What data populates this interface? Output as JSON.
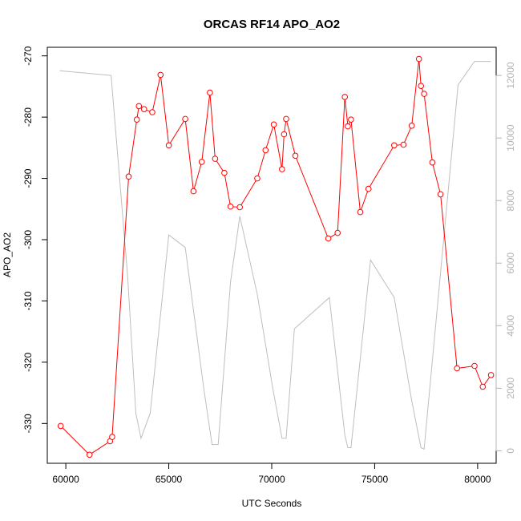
{
  "chart_data": {
    "type": "line",
    "title": "ORCAS RF14 APO_AO2",
    "xlabel": "UTC Seconds",
    "ylabel": "APO_AO2",
    "xlim": [
      59100,
      80900
    ],
    "ylim": [
      -336.5,
      -268.6
    ],
    "x_ticks": [
      60000,
      65000,
      70000,
      75000,
      80000
    ],
    "y_ticks": [
      -330,
      -320,
      -310,
      -300,
      -290,
      -280,
      -270
    ],
    "grid": false,
    "legend": "none",
    "series": [
      {
        "color": "#ff0000",
        "marker": "open-circle",
        "axis": "left",
        "x": [
          59750,
          61150,
          62150,
          62250,
          63050,
          63450,
          63550,
          63800,
          64200,
          64600,
          65000,
          65800,
          66200,
          66600,
          67000,
          67250,
          67700,
          68000,
          68450,
          69300,
          69700,
          70100,
          70500,
          70600,
          70700,
          71150,
          72750,
          73200,
          73550,
          73700,
          73850,
          74300,
          74700,
          75950,
          76400,
          76800,
          77150,
          77250,
          77400,
          77800,
          78200,
          79000,
          79850,
          80250,
          80650
        ],
        "y": [
          -330.4,
          -335.1,
          -332.9,
          -332.2,
          -289.7,
          -280.4,
          -278.2,
          -278.7,
          -279.2,
          -273.1,
          -284.6,
          -280.3,
          -292.1,
          -287.3,
          -276.0,
          -286.8,
          -289.1,
          -294.6,
          -294.7,
          -290.0,
          -285.4,
          -281.2,
          -288.5,
          -282.8,
          -280.3,
          -286.3,
          -299.8,
          -298.9,
          -276.7,
          -281.5,
          -280.4,
          -295.5,
          -291.7,
          -284.6,
          -284.5,
          -281.4,
          -270.5,
          -274.9,
          -276.2,
          -287.4,
          -292.6,
          -321.0,
          -320.6,
          -324.0,
          -322.1
        ]
      },
      {
        "color": "#bebebe",
        "marker": "none",
        "axis": "right",
        "x": [
          59700,
          62200,
          63000,
          63400,
          63650,
          64100,
          65000,
          65800,
          66700,
          67100,
          67400,
          68000,
          68450,
          69300,
          70050,
          70500,
          70700,
          71100,
          72800,
          73550,
          73700,
          73850,
          74800,
          75950,
          76800,
          77250,
          77400,
          79050,
          79850,
          80650
        ],
        "y": [
          12150,
          12000,
          5600,
          1200,
          400,
          1200,
          6900,
          6500,
          2000,
          200,
          200,
          5400,
          7500,
          5000,
          2000,
          400,
          400,
          3900,
          4900,
          500,
          100,
          100,
          6100,
          4900,
          1600,
          100,
          50,
          11700,
          12450,
          12450
        ]
      }
    ],
    "y2lim": [
      -400,
      12900
    ],
    "y2_ticks": [
      0,
      2000,
      4000,
      6000,
      8000,
      10000,
      12000
    ]
  }
}
